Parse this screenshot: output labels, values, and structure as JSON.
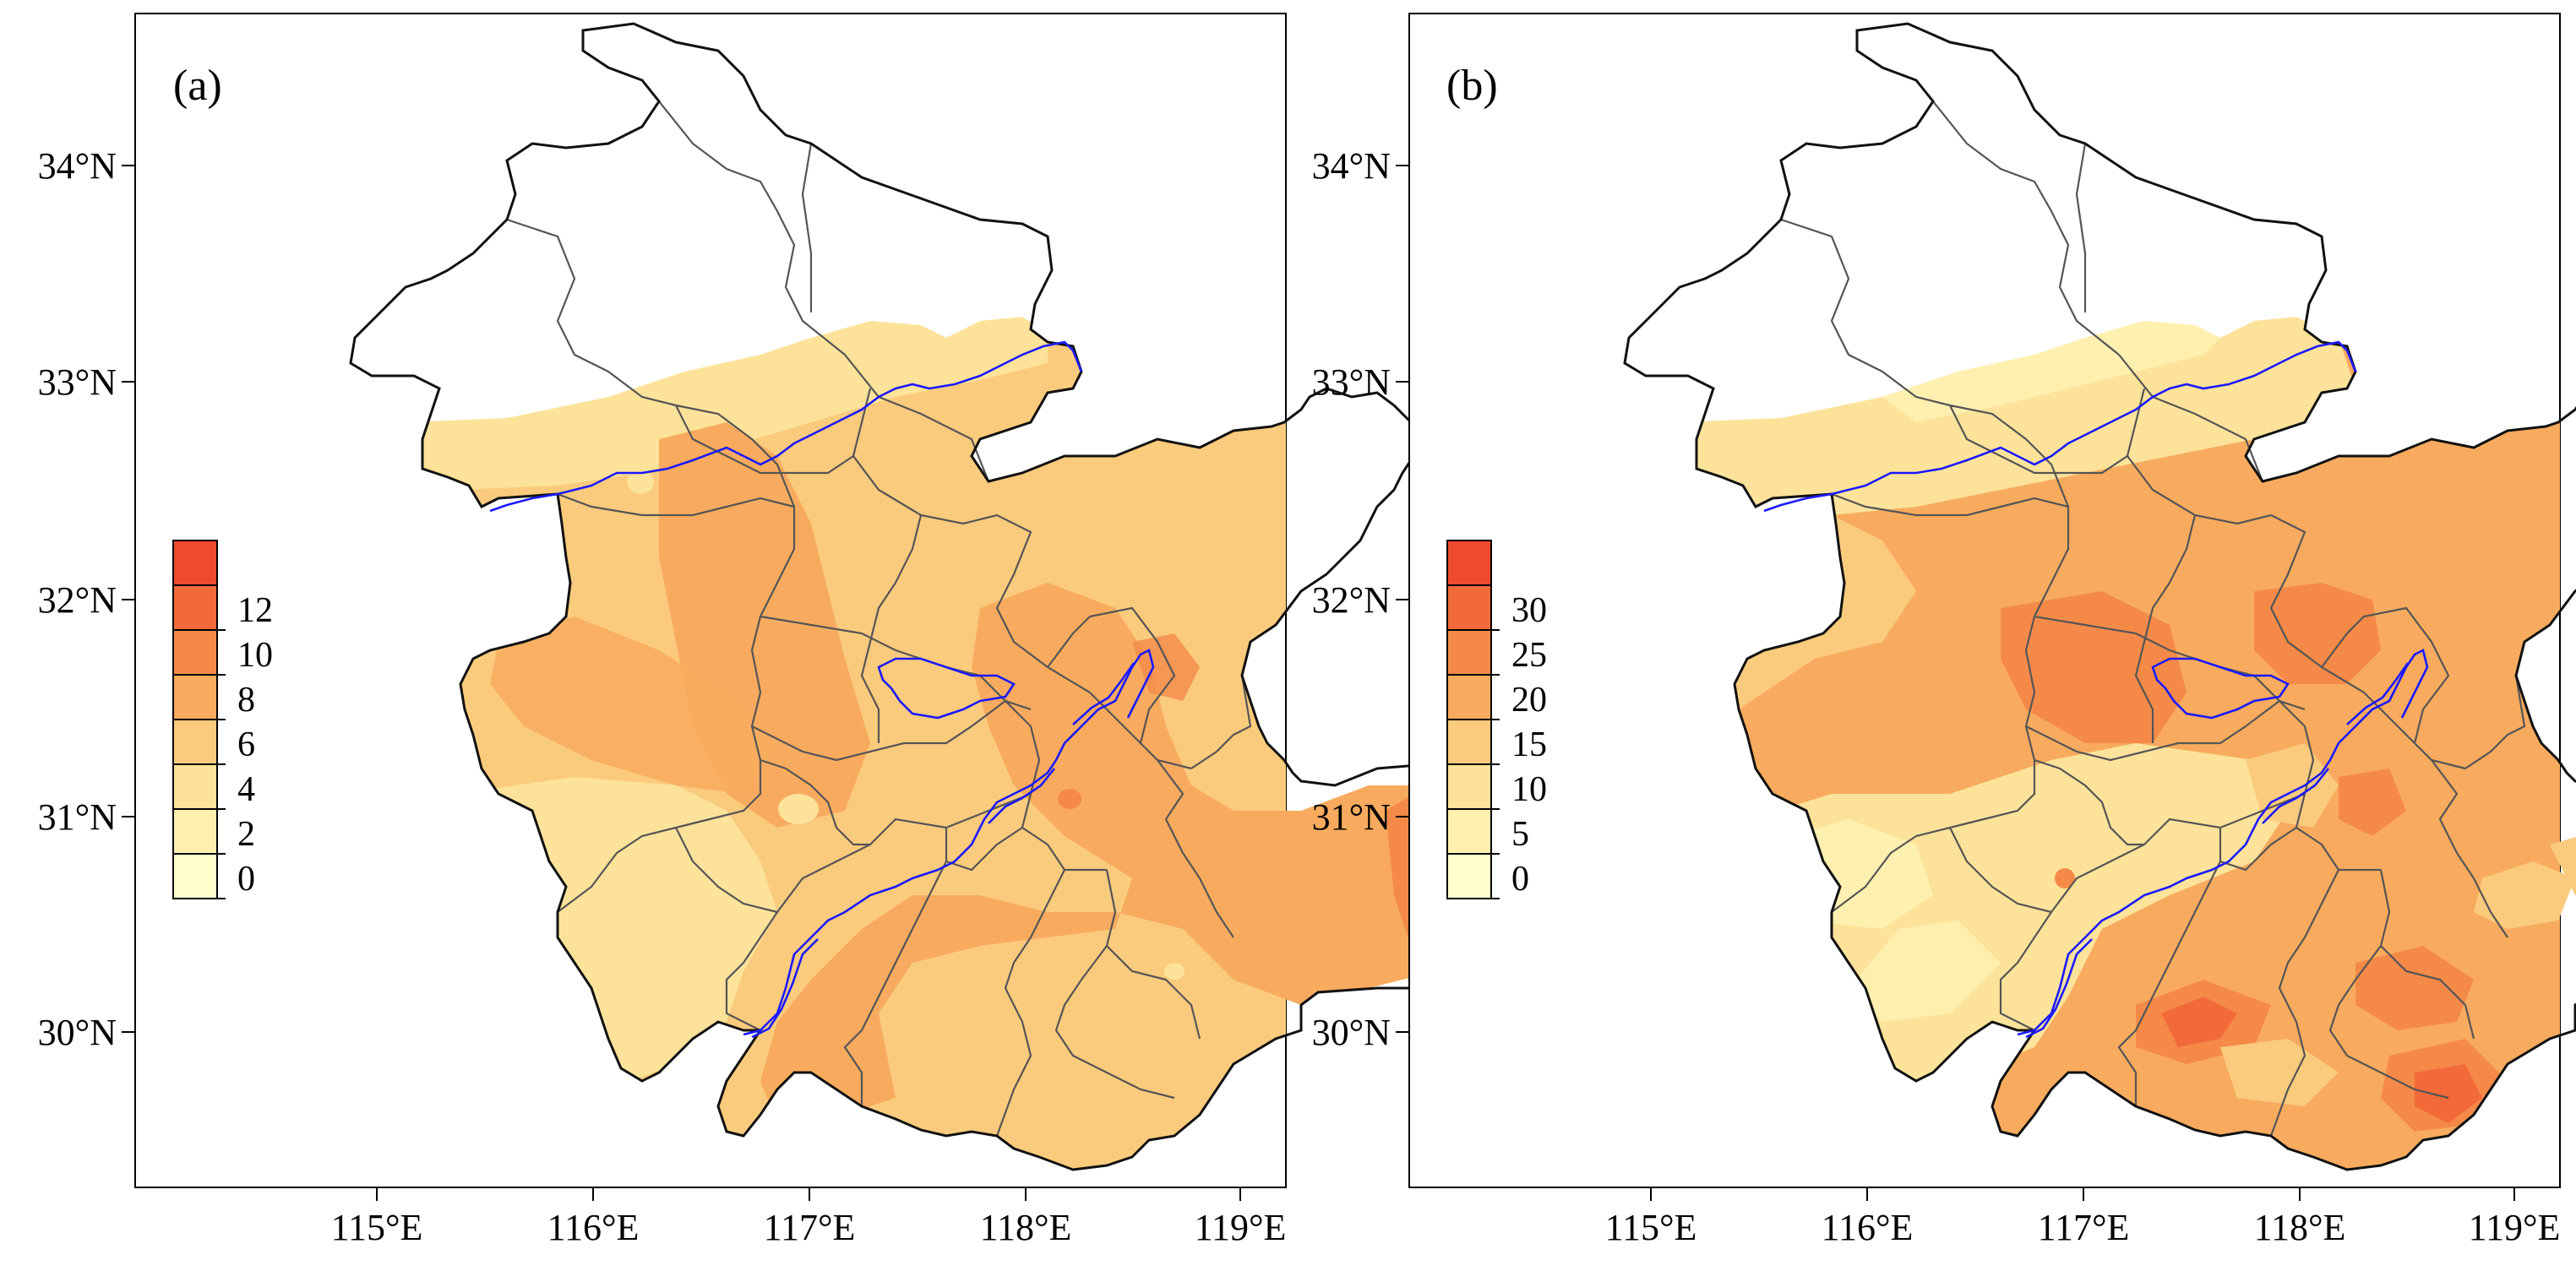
{
  "figure": {
    "type": "map",
    "panels": [
      {
        "id": "a",
        "label": "(a)",
        "colorbar": {
          "levels": [
            "0",
            "2",
            "4",
            "6",
            "8",
            "10",
            "12"
          ],
          "colors": [
            "#ffffcc",
            "#fff0b0",
            "#fde39a",
            "#fbcb7d",
            "#f8ab5e",
            "#f58a48",
            "#f26a3a",
            "#ee4a2e"
          ]
        }
      },
      {
        "id": "b",
        "label": "(b)",
        "colorbar": {
          "levels": [
            "0",
            "5",
            "10",
            "15",
            "20",
            "25",
            "30"
          ],
          "colors": [
            "#ffffcc",
            "#fff0b0",
            "#fde39a",
            "#fbcb7d",
            "#f8ab5e",
            "#f58a48",
            "#f26a3a",
            "#ee4a2e"
          ]
        }
      }
    ],
    "lon_ticks": [
      "115°E",
      "116°E",
      "117°E",
      "118°E",
      "119°E"
    ],
    "lat_ticks": [
      "34°N",
      "33°N",
      "32°N",
      "31°N",
      "30°N"
    ],
    "colors": {
      "river": "#1a1aff",
      "county_border": "#555555",
      "outline": "#111111"
    }
  }
}
